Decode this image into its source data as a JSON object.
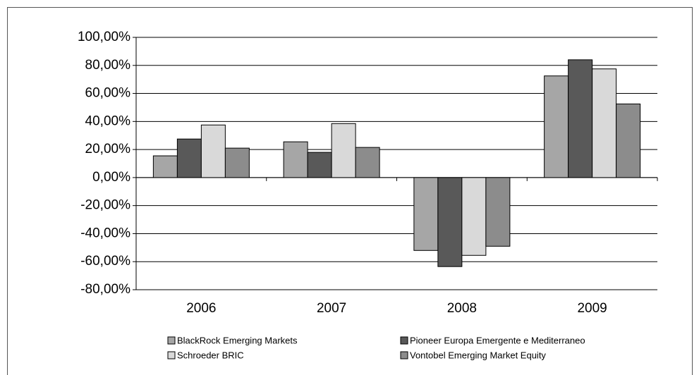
{
  "chart_data": {
    "type": "bar",
    "categories": [
      "2006",
      "2007",
      "2008",
      "2009"
    ],
    "series": [
      {
        "name": "BlackRock Emerging Markets",
        "color": "#a6a6a6",
        "values": [
          15.5,
          25.5,
          -52,
          72.5
        ]
      },
      {
        "name": "Pioneer Europa Emergente e Mediterraneo",
        "color": "#595959",
        "values": [
          27.5,
          18,
          -63.5,
          84
        ]
      },
      {
        "name": "Schroeder BRIC",
        "color": "#d9d9d9",
        "values": [
          37.5,
          38.5,
          -55.5,
          77.5
        ]
      },
      {
        "name": "Vontobel Emerging Market Equity",
        "color": "#8c8c8c",
        "values": [
          21,
          21.5,
          -49,
          52.5
        ]
      }
    ],
    "ylim": [
      -80,
      100
    ],
    "yticks": [
      {
        "value": -80,
        "label": "-80,00%"
      },
      {
        "value": -60,
        "label": "-60,00%"
      },
      {
        "value": -40,
        "label": "-40,00%"
      },
      {
        "value": -20,
        "label": "-20,00%"
      },
      {
        "value": 0,
        "label": "0,00%"
      },
      {
        "value": 20,
        "label": "20,00%"
      },
      {
        "value": 40,
        "label": "40,00%"
      },
      {
        "value": 60,
        "label": "60,00%"
      },
      {
        "value": 80,
        "label": "80,00%"
      },
      {
        "value": 100,
        "label": "100,00%"
      }
    ],
    "grid": true
  }
}
